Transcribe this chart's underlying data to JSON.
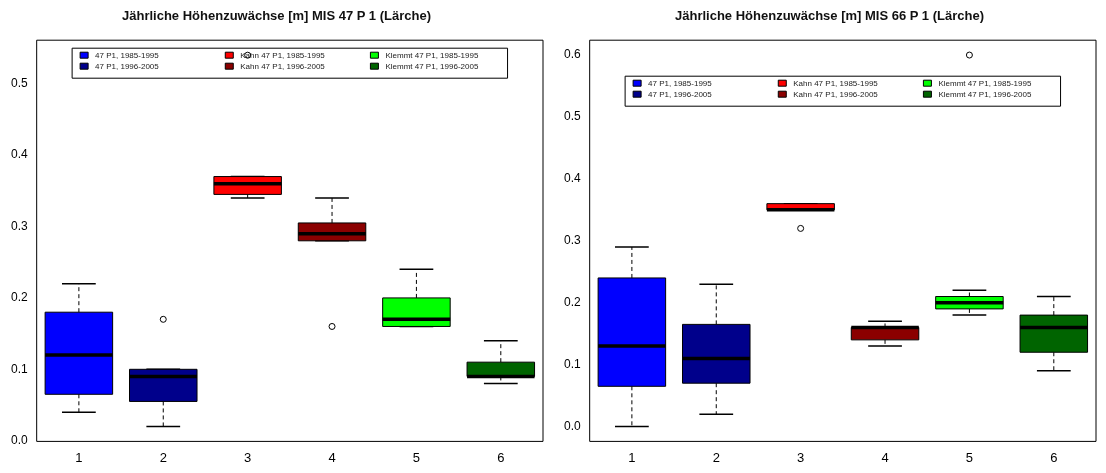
{
  "chart_data": [
    {
      "type": "box",
      "title": "Jährliche Höhenzuwächse [m] MIS 47 P 1 (Lärche)",
      "categories": [
        "1",
        "2",
        "3",
        "4",
        "5",
        "6"
      ],
      "ylim": [
        -0.001,
        0.561
      ],
      "yticks": [
        {
          "value": 0,
          "label": "0.0"
        },
        0.1,
        0.2,
        0.3,
        0.4,
        0.5
      ],
      "grid": false,
      "legend": "top",
      "series": [
        {
          "name": "47 P1, 1985-1995",
          "color": "#0000ff",
          "boxes": [
            {
              "low": 0.04,
              "q1": 0.065,
              "median": 0.12,
              "q3": 0.18,
              "high": 0.22
            },
            null,
            null,
            null,
            null,
            null
          ]
        },
        {
          "name": "47 P1, 1996-2005",
          "color": "#00008b",
          "boxes": [
            null,
            {
              "low": 0.02,
              "q1": 0.055,
              "median": 0.09,
              "q3": 0.1,
              "high": 0.1,
              "outliers": [
                0.17
              ]
            },
            null,
            null,
            null,
            null
          ]
        },
        {
          "name": "Kahn 47 P1, 1985-1995",
          "color": "#ff0000",
          "boxes": [
            null,
            null,
            {
              "low": 0.34,
              "q1": 0.345,
              "median": 0.36,
              "q3": 0.37,
              "high": 0.37,
              "outliers": [
                0.54
              ]
            },
            null,
            null,
            null
          ]
        },
        {
          "name": "Kahn 47 P1, 1996-2005",
          "color": "#8b0000",
          "boxes": [
            null,
            null,
            null,
            {
              "low": 0.28,
              "q1": 0.28,
              "median": 0.29,
              "q3": 0.305,
              "high": 0.34,
              "outliers": [
                0.16
              ]
            },
            null,
            null
          ]
        },
        {
          "name": "Klemmt 47 P1, 1985-1995",
          "color": "#00ff00",
          "boxes": [
            null,
            null,
            null,
            null,
            {
              "low": 0.16,
              "q1": 0.16,
              "median": 0.17,
              "q3": 0.2,
              "high": 0.24
            },
            null
          ]
        },
        {
          "name": "Klemmt 47 P1, 1996-2005",
          "color": "#006400",
          "boxes": [
            null,
            null,
            null,
            null,
            null,
            {
              "low": 0.08,
              "q1": 0.09,
              "median": 0.09,
              "q3": 0.11,
              "high": 0.14
            }
          ]
        }
      ]
    },
    {
      "type": "box",
      "title": "Jährliche Höhenzuwächse [m] MIS 66 P 1 (Lärche)",
      "categories": [
        "1",
        "2",
        "3",
        "4",
        "5",
        "6"
      ],
      "ylim": [
        -0.024,
        0.624
      ],
      "yticks": [
        {
          "value": 0,
          "label": "0.0"
        },
        0.1,
        0.2,
        0.3,
        0.4,
        0.5,
        0.6
      ],
      "grid": false,
      "legend": "top",
      "series": [
        {
          "name": "47 P1, 1985-1995",
          "color": "#0000ff",
          "boxes": [
            {
              "low": 0.0,
              "q1": 0.065,
              "median": 0.13,
              "q3": 0.24,
              "high": 0.29
            },
            null,
            null,
            null,
            null,
            null
          ]
        },
        {
          "name": "47 P1, 1996-2005",
          "color": "#00008b",
          "boxes": [
            null,
            {
              "low": 0.02,
              "q1": 0.07,
              "median": 0.11,
              "q3": 0.165,
              "high": 0.23
            },
            null,
            null,
            null,
            null
          ]
        },
        {
          "name": "Kahn 47 P1, 1985-1995",
          "color": "#ff0000",
          "boxes": [
            null,
            null,
            {
              "low": 0.35,
              "q1": 0.35,
              "median": 0.35,
              "q3": 0.36,
              "high": 0.36,
              "outliers": [
                0.32
              ]
            },
            null,
            null,
            null
          ]
        },
        {
          "name": "Kahn 47 P1, 1996-2005",
          "color": "#8b0000",
          "boxes": [
            null,
            null,
            null,
            {
              "low": 0.13,
              "q1": 0.14,
              "median": 0.16,
              "q3": 0.16,
              "high": 0.17
            },
            null,
            null
          ]
        },
        {
          "name": "Klemmt 47 P1, 1985-1995",
          "color": "#00ff00",
          "boxes": [
            null,
            null,
            null,
            null,
            {
              "low": 0.18,
              "q1": 0.19,
              "median": 0.2,
              "q3": 0.21,
              "high": 0.22,
              "outliers": [
                0.6
              ]
            },
            null
          ]
        },
        {
          "name": "Klemmt 47 P1, 1996-2005",
          "color": "#006400",
          "boxes": [
            null,
            null,
            null,
            null,
            null,
            {
              "low": 0.09,
              "q1": 0.12,
              "median": 0.16,
              "q3": 0.18,
              "high": 0.21
            }
          ]
        }
      ]
    }
  ]
}
